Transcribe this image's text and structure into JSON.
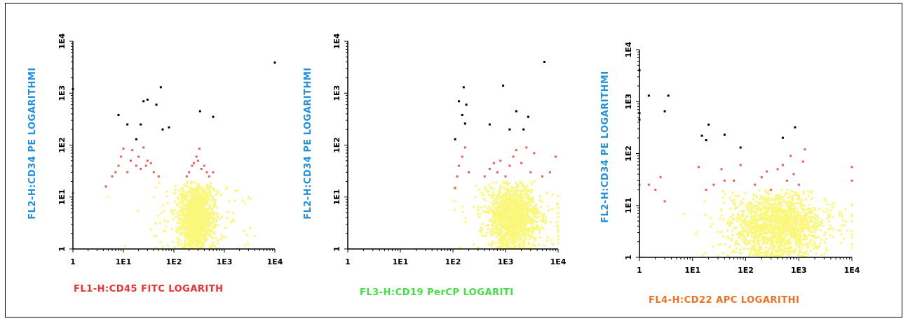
{
  "colors": {
    "ylabel": "#1f8fe0",
    "black_pop": "#000000",
    "red_pop": "#ef5a5a",
    "yellow_pop": "#fbf77a"
  },
  "chart_data": [
    {
      "type": "scatter",
      "xscale": "log",
      "yscale": "log",
      "xlim": [
        1,
        10000
      ],
      "ylim": [
        1,
        10000
      ],
      "xticks": [
        "1",
        "1E1",
        "1E2",
        "1E3",
        "1E4"
      ],
      "yticks": [
        "1",
        "1E1",
        "1E2",
        "1E3",
        "1E4"
      ],
      "xlabel": "FL1-H:CD45 FITC LOGARITH",
      "xlabel_color": "#f03030",
      "ylabel": "FL2-H:CD34 PE LOGARITHMI",
      "clusters": [
        {
          "name": "yellow",
          "color": "#fbf77a",
          "count": 1400,
          "cx": 280,
          "cy": 4,
          "sx": 0.16,
          "sy": 0.3,
          "sxo": 0.5,
          "syo": 0.35,
          "frac_outer": 0.12,
          "ymax": 20
        },
        {
          "name": "red",
          "color": "#ef5a5a",
          "points": [
            [
              1,
              12
            ],
            [
              4.5,
              16
            ],
            [
              6,
              25
            ],
            [
              7,
              30
            ],
            [
              8,
              40
            ],
            [
              9,
              60
            ],
            [
              10,
              85
            ],
            [
              12,
              30
            ],
            [
              14,
              50
            ],
            [
              15,
              80
            ],
            [
              18,
              40
            ],
            [
              20,
              60
            ],
            [
              22,
              35
            ],
            [
              25,
              90
            ],
            [
              28,
              40
            ],
            [
              30,
              50
            ],
            [
              35,
              45
            ],
            [
              40,
              30
            ],
            [
              50,
              25
            ],
            [
              180,
              25
            ],
            [
              200,
              30
            ],
            [
              230,
              40
            ],
            [
              250,
              45
            ],
            [
              280,
              60
            ],
            [
              300,
              50
            ],
            [
              320,
              85
            ],
            [
              350,
              35
            ],
            [
              400,
              40
            ],
            [
              450,
              30
            ],
            [
              500,
              25
            ],
            [
              600,
              30
            ]
          ]
        },
        {
          "name": "black",
          "color": "#000000",
          "points": [
            [
              1,
              1200
            ],
            [
              8,
              380
            ],
            [
              12,
              250
            ],
            [
              18,
              130
            ],
            [
              22,
              250
            ],
            [
              25,
              700
            ],
            [
              30,
              750
            ],
            [
              45,
              600
            ],
            [
              55,
              1300
            ],
            [
              60,
              200
            ],
            [
              80,
              220
            ],
            [
              330,
              450
            ],
            [
              600,
              350
            ],
            [
              10000,
              3900
            ]
          ]
        }
      ]
    },
    {
      "type": "scatter",
      "xscale": "log",
      "yscale": "log",
      "xlim": [
        1,
        10000
      ],
      "ylim": [
        1,
        10000
      ],
      "xticks": [
        "1",
        "1E1",
        "1E2",
        "1E3",
        "1E4"
      ],
      "yticks": [
        "1",
        "1E1",
        "1E2",
        "1E3",
        "1E4"
      ],
      "xlabel": "FL3-H:CD19 PerCP LOGARITI",
      "xlabel_color": "#40e040",
      "ylabel": "FL2-H:CD34 PE LOGARITHMI",
      "clusters": [
        {
          "name": "yellow",
          "color": "#fbf77a",
          "count": 1400,
          "cx": 1400,
          "cy": 4,
          "sx": 0.22,
          "sy": 0.3,
          "sxo": 0.5,
          "syo": 0.35,
          "frac_outer": 0.15,
          "ymax": 20,
          "xmin": 100
        },
        {
          "name": "red",
          "color": "#ef5a5a",
          "points": [
            [
              110,
              15
            ],
            [
              120,
              25
            ],
            [
              130,
              40
            ],
            [
              150,
              60
            ],
            [
              170,
              90
            ],
            [
              200,
              30
            ],
            [
              400,
              25
            ],
            [
              500,
              35
            ],
            [
              600,
              45
            ],
            [
              700,
              30
            ],
            [
              800,
              50
            ],
            [
              1000,
              25
            ],
            [
              1200,
              40
            ],
            [
              1400,
              60
            ],
            [
              1600,
              80
            ],
            [
              2000,
              45
            ],
            [
              2500,
              90
            ],
            [
              3000,
              30
            ],
            [
              3500,
              70
            ],
            [
              5000,
              25
            ],
            [
              7000,
              30
            ],
            [
              9000,
              60
            ]
          ]
        },
        {
          "name": "black",
          "color": "#000000",
          "points": [
            [
              110,
              130
            ],
            [
              130,
              700
            ],
            [
              150,
              380
            ],
            [
              160,
              1300
            ],
            [
              170,
              260
            ],
            [
              180,
              600
            ],
            [
              500,
              250
            ],
            [
              900,
              1400
            ],
            [
              1200,
              200
            ],
            [
              1600,
              450
            ],
            [
              2200,
              200
            ],
            [
              2700,
              350
            ],
            [
              5500,
              4000
            ]
          ]
        }
      ]
    },
    {
      "type": "scatter",
      "xscale": "log",
      "yscale": "log",
      "xlim": [
        1,
        10000
      ],
      "ylim": [
        1,
        10000
      ],
      "xticks": [
        "1",
        "1E1",
        "1E2",
        "1E3",
        "1E4"
      ],
      "yticks": [
        "1",
        "1E1",
        "1E2",
        "1E3",
        "1E4"
      ],
      "xlabel": "FL4-H:CD22 APC LOGARITHI",
      "xlabel_color": "#f07020",
      "ylabel": "FL2-H:CD34 PE LOGARITHMI",
      "clusters": [
        {
          "name": "yellow",
          "color": "#fbf77a",
          "count": 1500,
          "cx": 400,
          "cy": 4,
          "sx": 0.4,
          "sy": 0.3,
          "sxo": 0.7,
          "syo": 0.35,
          "frac_outer": 0.2,
          "ymax": 20
        },
        {
          "name": "red",
          "color": "#ef5a5a",
          "points": [
            [
              1,
              25
            ],
            [
              1.5,
              25
            ],
            [
              2,
              20
            ],
            [
              2.5,
              35
            ],
            [
              3,
              12
            ],
            [
              13,
              55
            ],
            [
              18,
              20
            ],
            [
              25,
              25
            ],
            [
              35,
              50
            ],
            [
              40,
              30
            ],
            [
              60,
              30
            ],
            [
              80,
              60
            ],
            [
              150,
              25
            ],
            [
              200,
              35
            ],
            [
              250,
              45
            ],
            [
              300,
              20
            ],
            [
              400,
              50
            ],
            [
              500,
              60
            ],
            [
              600,
              30
            ],
            [
              700,
              90
            ],
            [
              800,
              40
            ],
            [
              1000,
              25
            ],
            [
              1200,
              70
            ],
            [
              1300,
              120
            ],
            [
              10000,
              30
            ],
            [
              10000,
              55
            ]
          ]
        },
        {
          "name": "black",
          "color": "#000000",
          "points": [
            [
              1,
              4000
            ],
            [
              1,
              600
            ],
            [
              1,
              450
            ],
            [
              1.5,
              1300
            ],
            [
              3,
              650
            ],
            [
              3.5,
              1300
            ],
            [
              15,
              220
            ],
            [
              18,
              180
            ],
            [
              20,
              360
            ],
            [
              40,
              230
            ],
            [
              80,
              130
            ],
            [
              500,
              200
            ],
            [
              850,
              320
            ]
          ]
        }
      ]
    }
  ]
}
